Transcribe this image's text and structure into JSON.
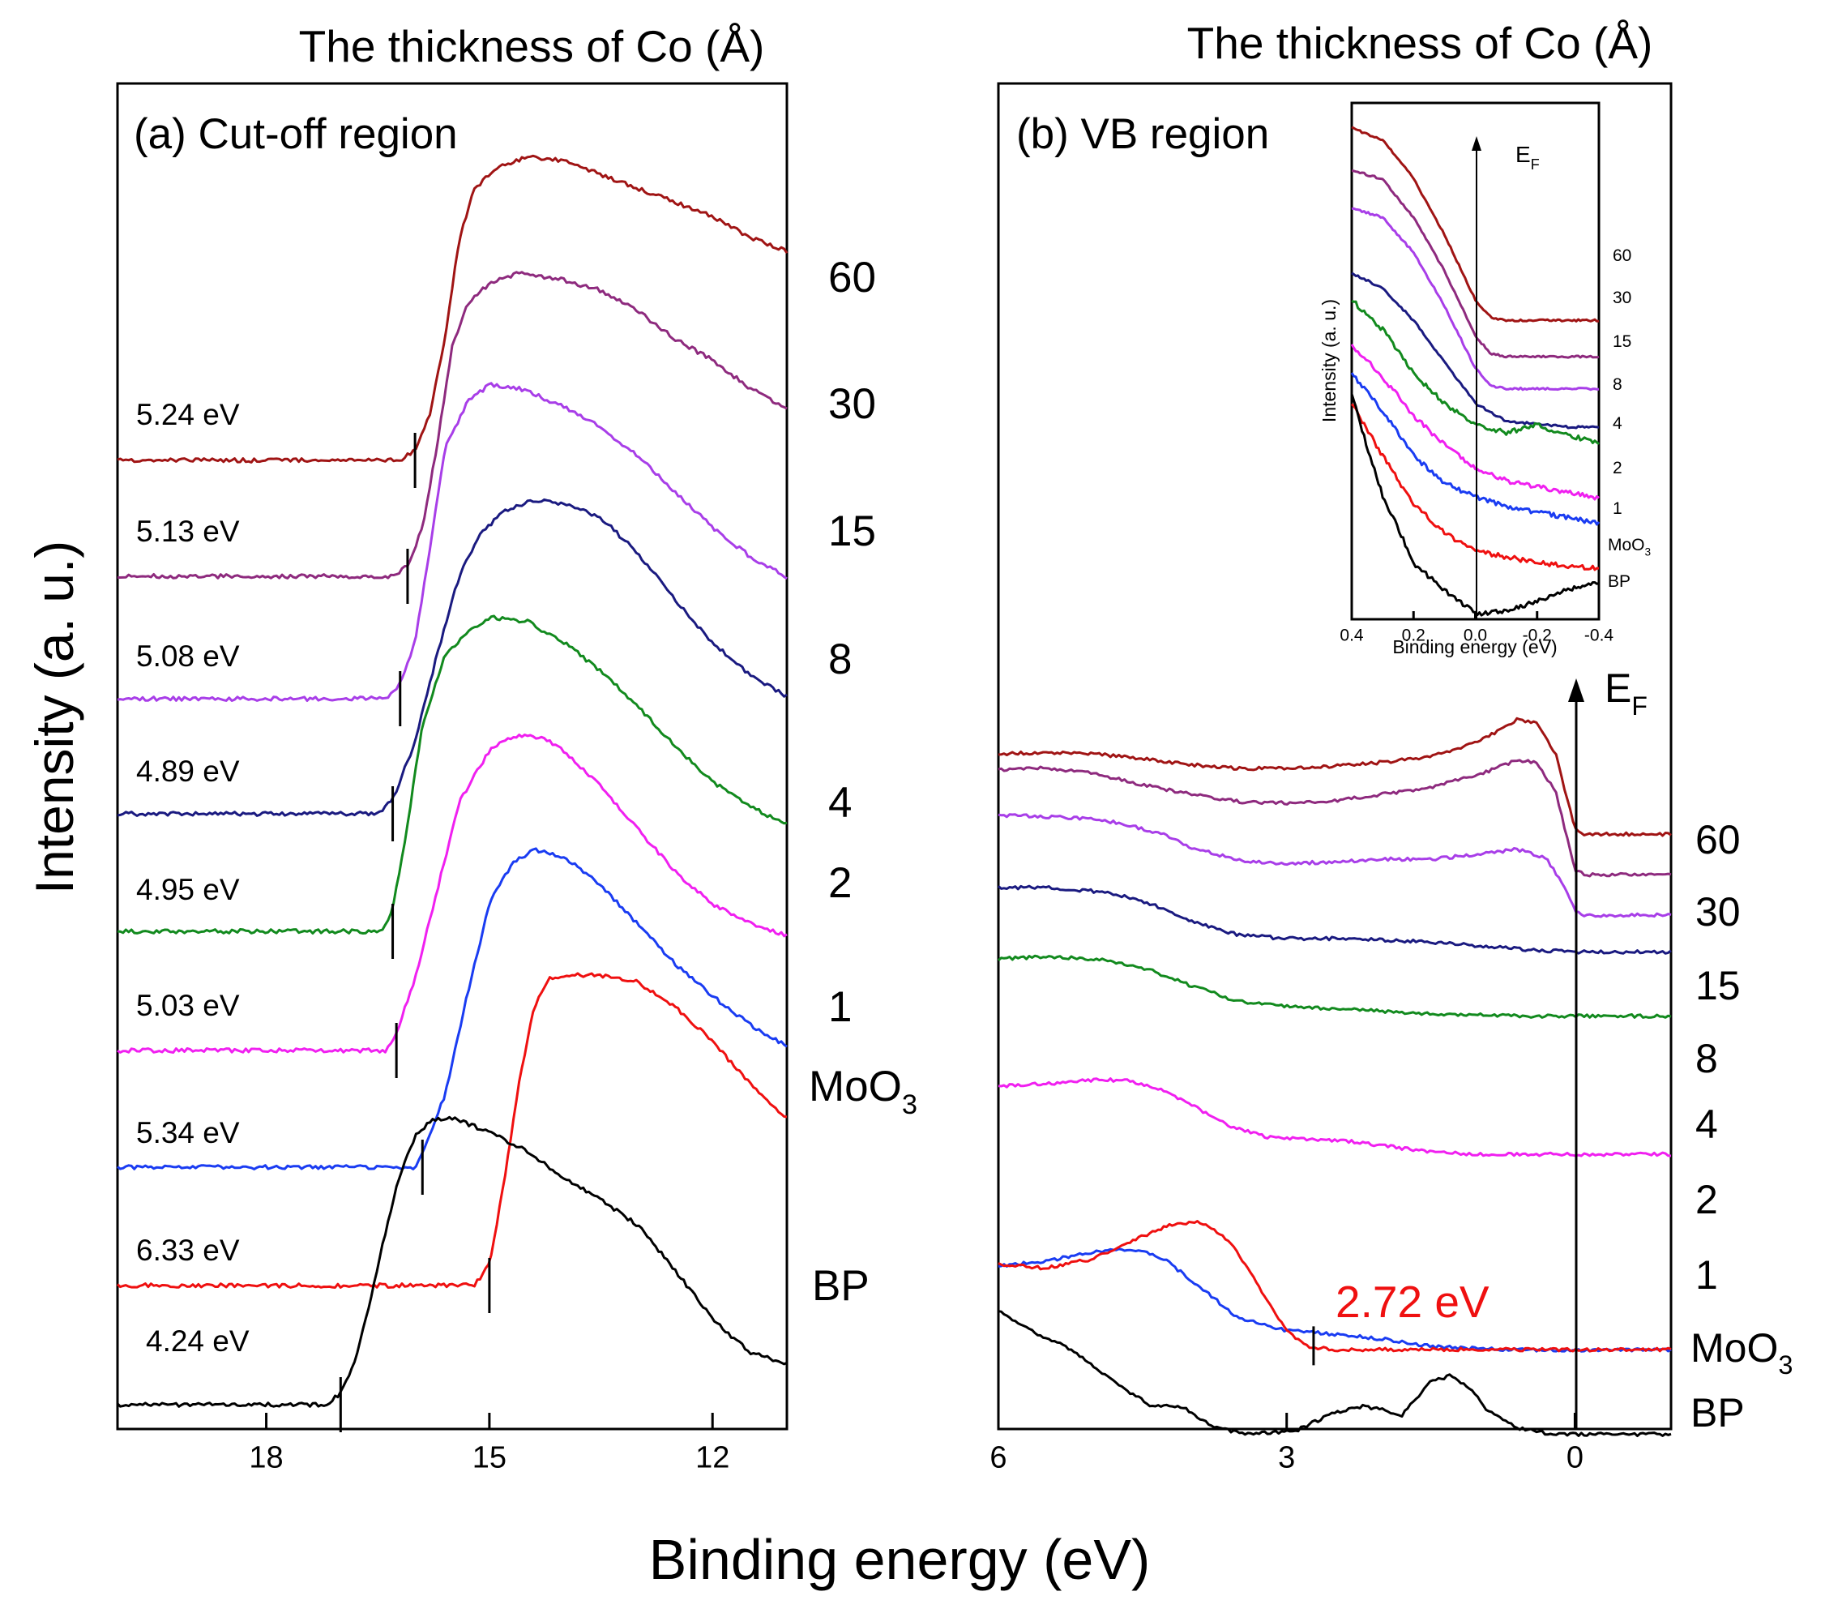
{
  "figure": {
    "ylabel": "Intensity (a. u.)",
    "xlabel": "Binding energy (eV)"
  },
  "colors": {
    "60": "#a01414",
    "30": "#8e2a7e",
    "15": "#a83ee8",
    "8": "#1a1a80",
    "4": "#128a1e",
    "2": "#f020f0",
    "1": "#1a3cf2",
    "MoO3": "#ef1010",
    "BP": "#000000"
  },
  "chart_data": [
    {
      "type": "line",
      "panel": "a",
      "top_label": "The thickness of Co (Å)",
      "panel_label": "(a) Cut-off region",
      "xlabel": "Binding energy (eV)",
      "ylabel": "Intensity (a. u.)",
      "xlim": [
        20,
        11
      ],
      "xticks": [
        "18",
        "15",
        "12"
      ],
      "series": [
        {
          "name": "60",
          "cutoff_label": "5.24 eV",
          "cutoff_ev": 16.0,
          "x": [
            20,
            16.2,
            16.0,
            15.8,
            15.6,
            15.4,
            15.2,
            14.9,
            14.5,
            14.0,
            13.5,
            13.0,
            12.5,
            12.0,
            11.5,
            11.0
          ],
          "y": [
            0.1,
            0.1,
            0.13,
            0.23,
            0.45,
            0.74,
            0.88,
            0.94,
            0.97,
            0.96,
            0.92,
            0.88,
            0.84,
            0.8,
            0.74,
            0.7
          ]
        },
        {
          "name": "30",
          "cutoff_label": "5.13 eV",
          "cutoff_ev": 16.1,
          "x": [
            20,
            16.3,
            16.1,
            15.9,
            15.7,
            15.5,
            15.3,
            15.0,
            14.6,
            14.0,
            13.5,
            13.0,
            12.5,
            12.0,
            11.5,
            11.0
          ],
          "y": [
            0.1,
            0.1,
            0.13,
            0.24,
            0.48,
            0.76,
            0.88,
            0.94,
            0.97,
            0.95,
            0.92,
            0.86,
            0.78,
            0.72,
            0.64,
            0.58
          ]
        },
        {
          "name": "15",
          "cutoff_label": "5.08 eV",
          "cutoff_ev": 16.2,
          "x": [
            20,
            16.4,
            16.2,
            16.0,
            15.8,
            15.6,
            15.3,
            15.0,
            14.6,
            14.0,
            13.5,
            13.0,
            12.5,
            12.0,
            11.5,
            11.0
          ],
          "y": [
            0.1,
            0.1,
            0.14,
            0.26,
            0.52,
            0.8,
            0.93,
            0.98,
            0.97,
            0.92,
            0.86,
            0.78,
            0.68,
            0.58,
            0.5,
            0.44
          ]
        },
        {
          "name": "8",
          "cutoff_label": "4.89 eV",
          "cutoff_ev": 16.3,
          "x": [
            20,
            16.5,
            16.3,
            16.0,
            15.7,
            15.4,
            15.1,
            14.8,
            14.4,
            14.0,
            13.5,
            13.0,
            12.5,
            12.0,
            11.5,
            11.0
          ],
          "y": [
            0.1,
            0.1,
            0.14,
            0.3,
            0.55,
            0.77,
            0.89,
            0.95,
            0.98,
            0.97,
            0.93,
            0.83,
            0.7,
            0.58,
            0.49,
            0.43
          ]
        },
        {
          "name": "4",
          "cutoff_label": "4.95 eV",
          "cutoff_ev": 16.3,
          "x": [
            20,
            16.45,
            16.3,
            16.1,
            15.9,
            15.6,
            15.3,
            15.0,
            14.5,
            14.0,
            13.5,
            13.0,
            12.5,
            12.0,
            11.5,
            11.0
          ],
          "y": [
            0.1,
            0.1,
            0.16,
            0.4,
            0.68,
            0.87,
            0.94,
            0.98,
            0.97,
            0.91,
            0.83,
            0.73,
            0.62,
            0.52,
            0.45,
            0.4
          ]
        },
        {
          "name": "2",
          "cutoff_label": "5.03 eV",
          "cutoff_ev": 16.25,
          "x": [
            20,
            16.4,
            16.25,
            16.0,
            15.7,
            15.4,
            15.0,
            14.7,
            14.3,
            14.0,
            13.5,
            13.0,
            12.5,
            12.0,
            11.5,
            11.0
          ],
          "y": [
            0.1,
            0.1,
            0.15,
            0.3,
            0.55,
            0.8,
            0.94,
            0.98,
            0.98,
            0.94,
            0.84,
            0.72,
            0.6,
            0.51,
            0.46,
            0.42
          ]
        },
        {
          "name": "1",
          "cutoff_label": "5.34 eV",
          "cutoff_ev": 15.9,
          "x": [
            20,
            16.0,
            15.9,
            15.6,
            15.3,
            15.0,
            14.7,
            14.4,
            14.0,
            13.5,
            13.0,
            12.5,
            12.0,
            11.5,
            11.0
          ],
          "y": [
            0.1,
            0.1,
            0.14,
            0.3,
            0.58,
            0.84,
            0.95,
            0.99,
            0.97,
            0.89,
            0.78,
            0.67,
            0.58,
            0.5,
            0.44
          ]
        },
        {
          "name": "MoO3",
          "display_label": "MoO",
          "display_sub": "3",
          "cutoff_label": "6.33 eV",
          "cutoff_ev": 15.0,
          "x": [
            20,
            15.2,
            15.0,
            14.8,
            14.6,
            14.4,
            14.2,
            14.0,
            13.5,
            13.0,
            12.5,
            12.0,
            11.5,
            11.0
          ],
          "y": [
            0.1,
            0.1,
            0.16,
            0.4,
            0.68,
            0.9,
            0.98,
            0.99,
            0.99,
            0.97,
            0.9,
            0.8,
            0.68,
            0.58
          ]
        },
        {
          "name": "BP",
          "cutoff_label": "4.24 eV",
          "cutoff_ev": 17.0,
          "x": [
            20,
            17.2,
            17.0,
            16.8,
            16.6,
            16.4,
            16.2,
            16.0,
            15.8,
            15.5,
            15.0,
            14.5,
            14.0,
            13.5,
            13.0,
            12.5,
            12.0,
            11.5,
            11.0
          ],
          "y": [
            0.1,
            0.1,
            0.13,
            0.22,
            0.38,
            0.56,
            0.72,
            0.82,
            0.86,
            0.87,
            0.83,
            0.78,
            0.71,
            0.65,
            0.58,
            0.46,
            0.33,
            0.24,
            0.21
          ]
        }
      ]
    },
    {
      "type": "line",
      "panel": "b",
      "top_label": "The thickness of Co (Å)",
      "panel_label": "(b) VB region",
      "xlabel": "Binding energy (eV)",
      "xlim": [
        6,
        -1
      ],
      "xticks": [
        "6",
        "3",
        "0"
      ],
      "fermi_label": "E",
      "fermi_sub": "F",
      "annotation": {
        "text": "2.72 eV",
        "ev": 2.72,
        "series": "MoO3"
      },
      "series": [
        {
          "name": "60",
          "x": [
            6,
            5.5,
            5,
            4.5,
            4,
            3.5,
            3,
            2.5,
            2,
            1.5,
            1,
            0.6,
            0.4,
            0.2,
            0.0,
            -0.1,
            -1
          ],
          "y": [
            0.1,
            0.11,
            0.1,
            0.06,
            0.01,
            -0.02,
            -0.02,
            0.0,
            0.03,
            0.08,
            0.2,
            0.38,
            0.35,
            0.1,
            -0.52,
            -0.56,
            -0.56
          ]
        },
        {
          "name": "30",
          "x": [
            6,
            5.5,
            5,
            4.5,
            4,
            3.5,
            3,
            2.5,
            2,
            1.5,
            1,
            0.6,
            0.4,
            0.2,
            0.0,
            -0.1,
            -1
          ],
          "y": [
            0.3,
            0.32,
            0.27,
            0.18,
            0.1,
            0.04,
            0.03,
            0.05,
            0.1,
            0.16,
            0.26,
            0.38,
            0.36,
            0.12,
            -0.52,
            -0.56,
            -0.56
          ]
        },
        {
          "name": "15",
          "x": [
            6,
            5.5,
            5,
            4.7,
            4.3,
            4,
            3.5,
            3,
            2.5,
            2,
            1.5,
            1,
            0.6,
            0.3,
            0.1,
            0.0,
            -0.1,
            -1
          ],
          "y": [
            0.4,
            0.39,
            0.37,
            0.33,
            0.25,
            0.14,
            0.03,
            0.0,
            0.02,
            0.04,
            0.04,
            0.08,
            0.12,
            0.05,
            -0.2,
            -0.38,
            -0.42,
            -0.42
          ]
        },
        {
          "name": "8",
          "x": [
            6,
            5.5,
            5,
            4.7,
            4.4,
            4,
            3.5,
            3,
            2.5,
            2,
            1.5,
            1,
            0.5,
            0.0,
            -0.5,
            -1
          ],
          "y": [
            0.4,
            0.4,
            0.37,
            0.33,
            0.26,
            0.12,
            0.01,
            -0.02,
            -0.02,
            -0.03,
            -0.05,
            -0.08,
            -0.11,
            -0.13,
            -0.13,
            -0.13
          ]
        },
        {
          "name": "4",
          "x": [
            6,
            5.5,
            5,
            4.7,
            4.4,
            4.0,
            3.5,
            3,
            2.5,
            2,
            1.5,
            1,
            0.5,
            0,
            -1
          ],
          "y": [
            0.4,
            0.42,
            0.4,
            0.36,
            0.3,
            0.18,
            0.05,
            0.01,
            -0.01,
            -0.03,
            -0.05,
            -0.06,
            -0.07,
            -0.07,
            -0.07
          ]
        },
        {
          "name": "2",
          "x": [
            6,
            5.5,
            5,
            4.7,
            4.4,
            4.0,
            3.6,
            3.2,
            2.8,
            2.4,
            2.0,
            1.5,
            1.0,
            0.5,
            0,
            -1
          ],
          "y": [
            0.0,
            0.02,
            0.05,
            0.05,
            0.0,
            -0.15,
            -0.33,
            -0.42,
            -0.44,
            -0.45,
            -0.49,
            -0.54,
            -0.56,
            -0.56,
            -0.56,
            -0.56
          ]
        },
        {
          "name": "1",
          "x": [
            6,
            5.5,
            5.0,
            4.6,
            4.3,
            4.0,
            3.5,
            3.0,
            2.5,
            2.0,
            1.5,
            1.0,
            0.5,
            0,
            -1
          ],
          "y": [
            0.0,
            0.04,
            0.12,
            0.14,
            0.07,
            -0.11,
            -0.43,
            -0.53,
            -0.56,
            -0.6,
            -0.66,
            -0.68,
            -0.69,
            -0.69,
            -0.69
          ]
        },
        {
          "name": "MoO3",
          "display_label": "MoO",
          "display_sub": "3",
          "x": [
            6,
            5.5,
            5.0,
            4.6,
            4.2,
            3.9,
            3.6,
            3.3,
            3.0,
            2.75,
            2.5,
            2.0,
            1.5,
            1.0,
            0.5,
            0,
            -1
          ],
          "y": [
            0.0,
            -0.03,
            0.05,
            0.2,
            0.33,
            0.35,
            0.2,
            -0.17,
            -0.55,
            -0.68,
            -0.7,
            -0.7,
            -0.7,
            -0.7,
            -0.7,
            -0.7,
            -0.7
          ]
        },
        {
          "name": "BP",
          "x": [
            6,
            5.6,
            5.2,
            4.8,
            4.4,
            4.1,
            3.8,
            3.5,
            3.2,
            2.9,
            2.5,
            2.2,
            2.0,
            1.8,
            1.5,
            1.3,
            1.1,
            0.9,
            0.6,
            0.3,
            0,
            -1
          ],
          "y": [
            0.88,
            0.7,
            0.55,
            0.3,
            0.1,
            0.1,
            -0.05,
            -0.12,
            -0.12,
            -0.1,
            0.05,
            0.1,
            0.07,
            0.03,
            0.3,
            0.35,
            0.25,
            0.06,
            -0.08,
            -0.12,
            -0.13,
            -0.13
          ]
        }
      ]
    },
    {
      "type": "line",
      "panel": "b-inset",
      "xlabel": "Binding energy (eV)",
      "ylabel": "Intensity (a. u.)",
      "xlim": [
        0.4,
        -0.4
      ],
      "xticks": [
        "0.4",
        "0.2",
        "0.0",
        "-0.2",
        "-0.4"
      ],
      "fermi_label": "E",
      "fermi_sub": "F",
      "series": [
        {
          "name": "60",
          "x": [
            0.4,
            0.3,
            0.2,
            0.1,
            0.0,
            -0.05,
            -0.1,
            -0.4
          ],
          "y": [
            1.0,
            0.96,
            0.83,
            0.64,
            0.42,
            0.36,
            0.35,
            0.35
          ]
        },
        {
          "name": "30",
          "x": [
            0.4,
            0.3,
            0.2,
            0.1,
            0.0,
            -0.05,
            -0.1,
            -0.4
          ],
          "y": [
            1.0,
            0.97,
            0.84,
            0.66,
            0.44,
            0.38,
            0.37,
            0.37
          ]
        },
        {
          "name": "15",
          "x": [
            0.4,
            0.3,
            0.2,
            0.1,
            0.0,
            -0.05,
            -0.1,
            -0.4
          ],
          "y": [
            1.0,
            0.97,
            0.85,
            0.67,
            0.46,
            0.4,
            0.39,
            0.39
          ]
        },
        {
          "name": "8",
          "x": [
            0.4,
            0.3,
            0.2,
            0.1,
            0.0,
            -0.1,
            -0.2,
            -0.3,
            -0.4
          ],
          "y": [
            1.0,
            0.95,
            0.84,
            0.7,
            0.56,
            0.5,
            0.49,
            0.48,
            0.48
          ]
        },
        {
          "name": "4",
          "x": [
            0.4,
            0.3,
            0.2,
            0.1,
            0.0,
            -0.1,
            -0.2,
            -0.3,
            -0.4
          ],
          "y": [
            1.0,
            0.9,
            0.75,
            0.65,
            0.58,
            0.55,
            0.58,
            0.54,
            0.52
          ]
        },
        {
          "name": "2",
          "x": [
            0.4,
            0.3,
            0.2,
            0.1,
            0.0,
            -0.1,
            -0.2,
            -0.3,
            -0.4
          ],
          "y": [
            1.0,
            0.89,
            0.76,
            0.66,
            0.58,
            0.54,
            0.52,
            0.5,
            0.48
          ]
        },
        {
          "name": "1",
          "x": [
            0.4,
            0.3,
            0.2,
            0.1,
            0.0,
            -0.1,
            -0.2,
            -0.3,
            -0.4
          ],
          "y": [
            1.0,
            0.87,
            0.72,
            0.63,
            0.58,
            0.55,
            0.53,
            0.51,
            0.49
          ]
        },
        {
          "name": "MoO3",
          "display_label": "MoO",
          "display_sub": "3",
          "x": [
            0.4,
            0.3,
            0.2,
            0.1,
            0.0,
            -0.1,
            -0.2,
            -0.3,
            -0.4
          ],
          "y": [
            1.0,
            0.82,
            0.66,
            0.56,
            0.5,
            0.48,
            0.46,
            0.45,
            0.44
          ]
        },
        {
          "name": "BP",
          "x": [
            0.4,
            0.35,
            0.3,
            0.25,
            0.2,
            0.1,
            0.0,
            -0.1,
            -0.2,
            -0.3,
            -0.4
          ],
          "y": [
            1.0,
            0.82,
            0.66,
            0.55,
            0.43,
            0.34,
            0.26,
            0.27,
            0.3,
            0.34,
            0.37
          ]
        }
      ]
    }
  ]
}
